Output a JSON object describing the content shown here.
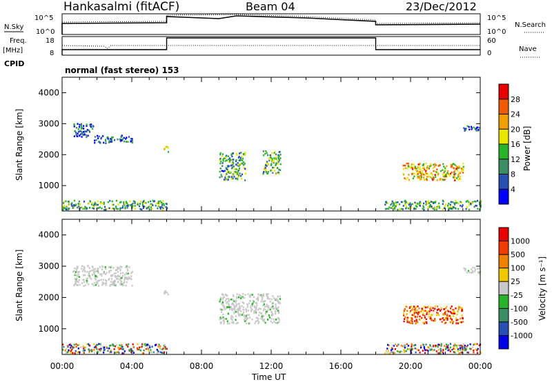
{
  "header": {
    "station": "Hankasalmi (fitACF)",
    "beam": "Beam 04",
    "date": "23/Dec/2012"
  },
  "top_panels": {
    "nsky_label": "N.Sky",
    "nsky_ticks": [
      "10^5",
      "10^0"
    ],
    "nsearch_label": "N.Search",
    "nsearch_ticks": [
      "10^5",
      "10^0"
    ],
    "freq_label": "Freq.",
    "freq_unit": "[MHz]",
    "freq_ticks": [
      "18",
      "8"
    ],
    "nave_label": "Nave",
    "nave_ticks": [
      "60",
      "0"
    ],
    "cpid_label": "CPID",
    "cpid_text": "normal (fast stereo) 153"
  },
  "chart_data": [
    {
      "type": "heatmap",
      "name": "power",
      "ylabel": "Slant Range [km]",
      "xlabel": "Time UT",
      "x_ticks": [
        "00:00",
        "04:00",
        "08:00",
        "12:00",
        "16:00",
        "20:00",
        "00:00"
      ],
      "xlim": [
        0,
        24
      ],
      "ylim": [
        180,
        4500
      ],
      "y_ticks": [
        1000,
        2000,
        3000,
        4000
      ],
      "colorbar": {
        "label": "Power [dB]",
        "ticks": [
          "4",
          "8",
          "12",
          "16",
          "20",
          "24",
          "28"
        ],
        "colors": [
          "#0000ff",
          "#2850b4",
          "#3c8c64",
          "#28b428",
          "#e6e600",
          "#f0a000",
          "#f05a00",
          "#e60000"
        ]
      },
      "echo_regions": [
        {
          "t0": 0.0,
          "t1": 6.0,
          "r0": 200,
          "r1": 500,
          "level": 0.35
        },
        {
          "t0": 0.6,
          "t1": 1.8,
          "r0": 2550,
          "r1": 3000,
          "level": 0.15
        },
        {
          "t0": 1.8,
          "t1": 4.0,
          "r0": 2350,
          "r1": 2600,
          "level": 0.15
        },
        {
          "t0": 5.8,
          "t1": 6.1,
          "r0": 2050,
          "r1": 2250,
          "level": 0.45
        },
        {
          "t0": 9.0,
          "t1": 10.5,
          "r0": 1150,
          "r1": 2050,
          "level": 0.35
        },
        {
          "t0": 11.5,
          "t1": 12.5,
          "r0": 1350,
          "r1": 2100,
          "level": 0.4
        },
        {
          "t0": 18.5,
          "t1": 24.0,
          "r0": 200,
          "r1": 500,
          "level": 0.35
        },
        {
          "t0": 19.5,
          "t1": 23.0,
          "r0": 1150,
          "r1": 1700,
          "level": 0.7
        },
        {
          "t0": 23.0,
          "t1": 24.0,
          "r0": 2750,
          "r1": 2950,
          "level": 0.15
        }
      ]
    },
    {
      "type": "heatmap",
      "name": "velocity",
      "ylabel": "Slant Range [km]",
      "xlabel": "Time UT",
      "x_ticks": [
        "00:00",
        "04:00",
        "08:00",
        "12:00",
        "16:00",
        "20:00",
        "00:00"
      ],
      "xlim": [
        0,
        24
      ],
      "ylim": [
        180,
        4500
      ],
      "y_ticks": [
        1000,
        2000,
        3000,
        4000
      ],
      "colorbar": {
        "label": "Velocity [m s⁻¹]",
        "ticks": [
          "1000",
          "500",
          "100",
          "25",
          "-25",
          "-100",
          "-500",
          "-1000"
        ],
        "colors": [
          "#0000e6",
          "#2850b4",
          "#3c8c64",
          "#28b428",
          "#c8c8c8",
          "#f0c800",
          "#f08200",
          "#f03c00",
          "#e60000"
        ]
      },
      "echo_regions": [
        {
          "t0": 0.0,
          "t1": 6.0,
          "r0": 200,
          "r1": 500,
          "level": 0.6
        },
        {
          "t0": 0.6,
          "t1": 4.0,
          "r0": 2350,
          "r1": 3000,
          "level": 0.45
        },
        {
          "t0": 5.8,
          "t1": 6.1,
          "r0": 2050,
          "r1": 2250,
          "level": 0.45
        },
        {
          "t0": 9.0,
          "t1": 12.5,
          "r0": 1150,
          "r1": 2100,
          "level": 0.45
        },
        {
          "t0": 18.5,
          "t1": 24.0,
          "r0": 200,
          "r1": 500,
          "level": 0.6
        },
        {
          "t0": 19.5,
          "t1": 23.0,
          "r0": 1150,
          "r1": 1700,
          "level": 0.75
        },
        {
          "t0": 23.0,
          "t1": 24.0,
          "r0": 2750,
          "r1": 2950,
          "level": 0.45
        }
      ]
    }
  ]
}
